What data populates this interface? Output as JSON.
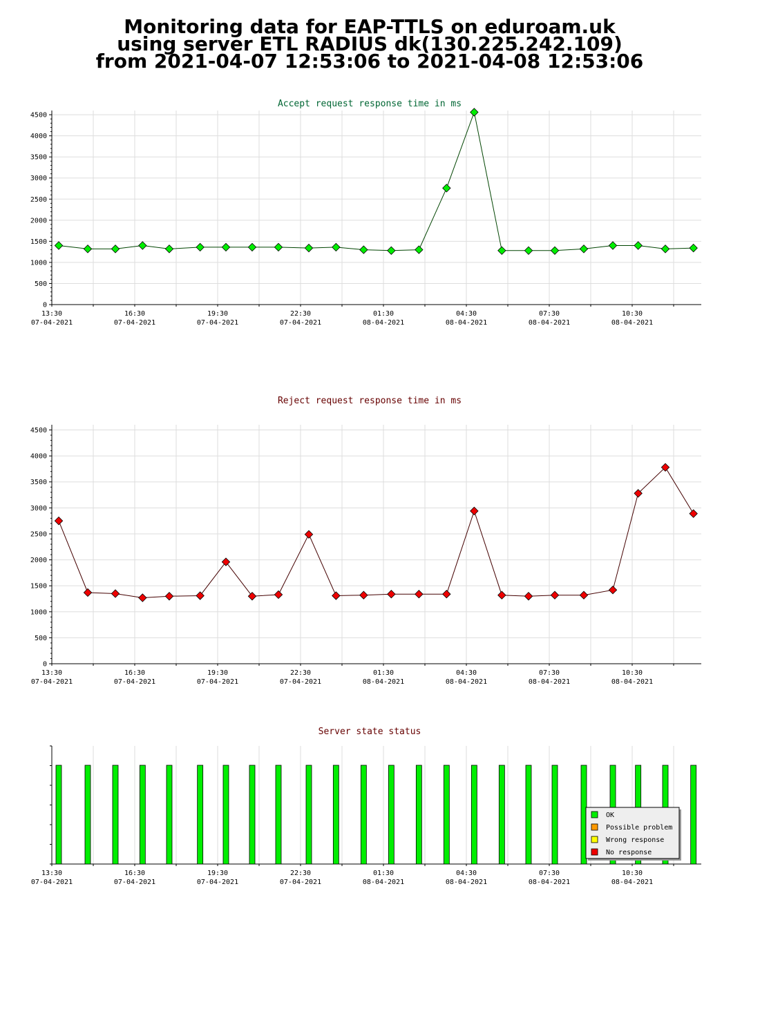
{
  "header": {
    "line1": "Monitoring data for EAP-TTLS on eduroam.uk",
    "line2": "using server ETL RADIUS dk(130.225.242.109)",
    "line3": "from 2021-04-07 12:53:06 to 2021-04-08 12:53:06"
  },
  "chart_data": [
    {
      "type": "line",
      "title": "Accept request response time in ms",
      "title_color": "#006633",
      "color": "#00ee00",
      "line_color": "#004400",
      "ylim": [
        0,
        4600
      ],
      "yticks": [
        0,
        500,
        1000,
        1500,
        2000,
        2500,
        3000,
        3500,
        4000,
        4500
      ],
      "x_ticks": [
        {
          "time": "13:30",
          "date": "07-04-2021"
        },
        {
          "time": "16:30",
          "date": "07-04-2021"
        },
        {
          "time": "19:30",
          "date": "07-04-2021"
        },
        {
          "time": "22:30",
          "date": "07-04-2021"
        },
        {
          "time": "01:30",
          "date": "08-04-2021"
        },
        {
          "time": "04:30",
          "date": "08-04-2021"
        },
        {
          "time": "07:30",
          "date": "08-04-2021"
        },
        {
          "time": "10:30",
          "date": "08-04-2021"
        }
      ],
      "grid": true,
      "x": [
        "2021-04-07 13:45",
        "2021-04-07 14:48",
        "2021-04-07 15:48",
        "2021-04-07 16:47",
        "2021-04-07 17:45",
        "2021-04-07 18:52",
        "2021-04-07 19:48",
        "2021-04-07 20:45",
        "2021-04-07 21:42",
        "2021-04-07 22:48",
        "2021-04-07 23:47",
        "2021-04-08 00:47",
        "2021-04-08 01:47",
        "2021-04-08 02:47",
        "2021-04-08 03:47",
        "2021-04-08 04:47",
        "2021-04-08 05:47",
        "2021-04-08 06:45",
        "2021-04-08 07:42",
        "2021-04-08 08:45",
        "2021-04-08 09:48",
        "2021-04-08 10:43",
        "2021-04-08 11:42",
        "2021-04-08 12:43"
      ],
      "values": [
        1400,
        1320,
        1320,
        1400,
        1320,
        1360,
        1360,
        1360,
        1360,
        1340,
        1360,
        1300,
        1280,
        1300,
        2760,
        4560,
        1280,
        1280,
        1280,
        1320,
        1400,
        1400,
        1320,
        1340
      ]
    },
    {
      "type": "line",
      "title": "Reject request response time in ms",
      "title_color": "#660000",
      "color": "#ee0000",
      "line_color": "#440000",
      "ylim": [
        0,
        4600
      ],
      "yticks": [
        0,
        500,
        1000,
        1500,
        2000,
        2500,
        3000,
        3500,
        4000,
        4500
      ],
      "x_ticks": [
        {
          "time": "13:30",
          "date": "07-04-2021"
        },
        {
          "time": "16:30",
          "date": "07-04-2021"
        },
        {
          "time": "19:30",
          "date": "07-04-2021"
        },
        {
          "time": "22:30",
          "date": "07-04-2021"
        },
        {
          "time": "01:30",
          "date": "08-04-2021"
        },
        {
          "time": "04:30",
          "date": "08-04-2021"
        },
        {
          "time": "07:30",
          "date": "08-04-2021"
        },
        {
          "time": "10:30",
          "date": "08-04-2021"
        }
      ],
      "grid": true,
      "x": [
        "2021-04-07 13:45",
        "2021-04-07 14:48",
        "2021-04-07 15:48",
        "2021-04-07 16:47",
        "2021-04-07 17:45",
        "2021-04-07 18:52",
        "2021-04-07 19:48",
        "2021-04-07 20:45",
        "2021-04-07 21:42",
        "2021-04-07 22:48",
        "2021-04-07 23:47",
        "2021-04-08 00:47",
        "2021-04-08 01:47",
        "2021-04-08 02:47",
        "2021-04-08 03:47",
        "2021-04-08 04:47",
        "2021-04-08 05:47",
        "2021-04-08 06:45",
        "2021-04-08 07:42",
        "2021-04-08 08:45",
        "2021-04-08 09:48",
        "2021-04-08 10:43",
        "2021-04-08 11:42",
        "2021-04-08 12:43"
      ],
      "values": [
        2750,
        1370,
        1350,
        1270,
        1300,
        1310,
        1960,
        1300,
        1330,
        2490,
        1310,
        1320,
        1340,
        1340,
        1340,
        2940,
        1320,
        1300,
        1320,
        1320,
        1420,
        3280,
        3780,
        2890
      ]
    },
    {
      "type": "bar",
      "title": "Server state status",
      "title_color": "#660000",
      "x_ticks": [
        {
          "time": "13:30",
          "date": "07-04-2021"
        },
        {
          "time": "16:30",
          "date": "07-04-2021"
        },
        {
          "time": "19:30",
          "date": "07-04-2021"
        },
        {
          "time": "22:30",
          "date": "07-04-2021"
        },
        {
          "time": "01:30",
          "date": "08-04-2021"
        },
        {
          "time": "04:30",
          "date": "08-04-2021"
        },
        {
          "time": "07:30",
          "date": "08-04-2021"
        },
        {
          "time": "10:30",
          "date": "08-04-2021"
        }
      ],
      "x": [
        "2021-04-07 13:45",
        "2021-04-07 14:48",
        "2021-04-07 15:48",
        "2021-04-07 16:47",
        "2021-04-07 17:45",
        "2021-04-07 18:52",
        "2021-04-07 19:48",
        "2021-04-07 20:45",
        "2021-04-07 21:42",
        "2021-04-07 22:48",
        "2021-04-07 23:47",
        "2021-04-08 00:47",
        "2021-04-08 01:47",
        "2021-04-08 02:47",
        "2021-04-08 03:47",
        "2021-04-08 04:47",
        "2021-04-08 05:47",
        "2021-04-08 06:45",
        "2021-04-08 07:42",
        "2021-04-08 08:45",
        "2021-04-08 09:48",
        "2021-04-08 10:43",
        "2021-04-08 11:42",
        "2021-04-08 12:43"
      ],
      "values": [
        "OK",
        "OK",
        "OK",
        "OK",
        "OK",
        "OK",
        "OK",
        "OK",
        "OK",
        "OK",
        "OK",
        "OK",
        "OK",
        "OK",
        "OK",
        "OK",
        "OK",
        "OK",
        "OK",
        "OK",
        "OK",
        "OK",
        "OK",
        "OK"
      ],
      "legend_position": "bottom-right",
      "legend": [
        {
          "label": "OK",
          "color": "#00ee00"
        },
        {
          "label": "Possible problem",
          "color": "#ff9900"
        },
        {
          "label": "Wrong response",
          "color": "#ffff00"
        },
        {
          "label": "No response",
          "color": "#ee0000"
        }
      ]
    }
  ]
}
